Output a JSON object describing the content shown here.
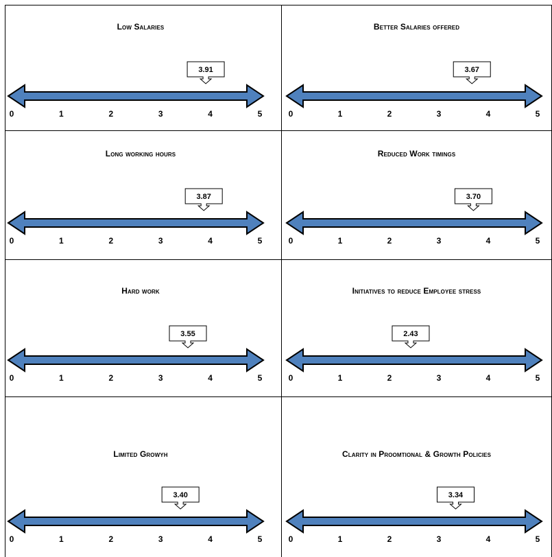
{
  "colors": {
    "arrow_fill": "#4f81bd",
    "arrow_stroke": "#000000",
    "border": "#000000"
  },
  "chart_data": [
    {
      "type": "scale",
      "title": "Low Salaries",
      "value": 3.91,
      "value_label": "3.91",
      "axis_min": 0,
      "axis_max": 5,
      "ticks": [
        "0",
        "1",
        "2",
        "3",
        "4",
        "5"
      ]
    },
    {
      "type": "scale",
      "title": "Better Salaries offered",
      "value": 3.67,
      "value_label": "3.67",
      "axis_min": 0,
      "axis_max": 5,
      "ticks": [
        "0",
        "1",
        "2",
        "3",
        "4",
        "5"
      ]
    },
    {
      "type": "scale",
      "title": "Long working hours",
      "value": 3.87,
      "value_label": "3.87",
      "axis_min": 0,
      "axis_max": 5,
      "ticks": [
        "0",
        "1",
        "2",
        "3",
        "4",
        "5"
      ]
    },
    {
      "type": "scale",
      "title": "Reduced Work timings",
      "value": 3.7,
      "value_label": "3.70",
      "axis_min": 0,
      "axis_max": 5,
      "ticks": [
        "0",
        "1",
        "2",
        "3",
        "4",
        "5"
      ]
    },
    {
      "type": "scale",
      "title": "Hard work",
      "value": 3.55,
      "value_label": "3.55",
      "axis_min": 0,
      "axis_max": 5,
      "ticks": [
        "0",
        "1",
        "2",
        "3",
        "4",
        "5"
      ]
    },
    {
      "type": "scale",
      "title": "Initiatives to reduce Employee stress",
      "value": 2.43,
      "value_label": "2.43",
      "axis_min": 0,
      "axis_max": 5,
      "ticks": [
        "0",
        "1",
        "2",
        "3",
        "4",
        "5"
      ]
    },
    {
      "type": "scale",
      "title": "Limited Growyh",
      "value": 3.4,
      "value_label": "3.40",
      "axis_min": 0,
      "axis_max": 5,
      "ticks": [
        "0",
        "1",
        "2",
        "3",
        "4",
        "5"
      ]
    },
    {
      "type": "scale",
      "title": "Clarity in Proomtional & Growth Policies",
      "value": 3.34,
      "value_label": "3.34",
      "axis_min": 0,
      "axis_max": 5,
      "ticks": [
        "0",
        "1",
        "2",
        "3",
        "4",
        "5"
      ]
    }
  ]
}
